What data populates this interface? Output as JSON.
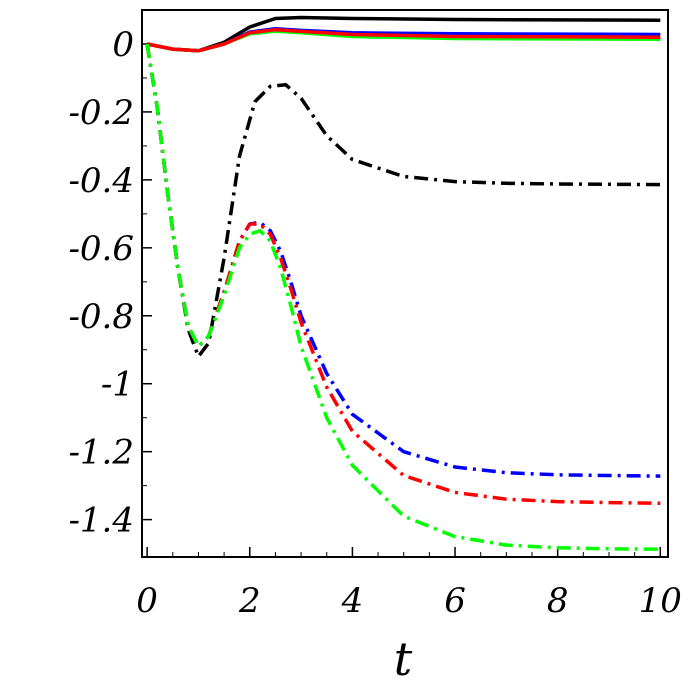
{
  "chart_data": {
    "type": "line",
    "xlabel": "t",
    "ylabel": "",
    "title": "",
    "xlim": [
      -0.1,
      10.15
    ],
    "ylim": [
      -1.51,
      0.1
    ],
    "grid": false,
    "xticks": [
      0,
      2,
      4,
      6,
      8,
      10
    ],
    "xtick_labels": [
      "0",
      "2",
      "4",
      "6",
      "8",
      "10"
    ],
    "yticks": [
      0,
      -0.2,
      -0.4,
      -0.6,
      -0.8,
      -1,
      -1.2,
      -1.4
    ],
    "ytick_labels": [
      "0",
      "-0.2",
      "-0.4",
      "-0.6",
      "-0.8",
      "-1",
      "-1.2",
      "-1.4"
    ],
    "series": [
      {
        "color": "#000000",
        "style": "solid",
        "x": [
          0,
          0.5,
          1.0,
          1.5,
          2.0,
          2.5,
          3.0,
          4.0,
          6.0,
          8.0,
          10.0
        ],
        "y": [
          0,
          -0.015,
          -0.02,
          0.005,
          0.05,
          0.075,
          0.078,
          0.075,
          0.072,
          0.071,
          0.07
        ]
      },
      {
        "color": "#0000ff",
        "style": "solid",
        "x": [
          0,
          0.5,
          1.0,
          1.5,
          2.0,
          2.5,
          3.0,
          4.0,
          6.0,
          8.0,
          10.0
        ],
        "y": [
          0,
          -0.015,
          -0.02,
          0.0,
          0.035,
          0.045,
          0.04,
          0.033,
          0.03,
          0.029,
          0.028
        ]
      },
      {
        "color": "#00ff00",
        "style": "solid",
        "x": [
          0,
          0.5,
          1.0,
          1.5,
          2.0,
          2.5,
          3.0,
          4.0,
          6.0,
          8.0,
          10.0
        ],
        "y": [
          0,
          -0.015,
          -0.02,
          0.0,
          0.03,
          0.038,
          0.033,
          0.022,
          0.016,
          0.015,
          0.014
        ]
      },
      {
        "color": "#ff0000",
        "style": "solid",
        "x": [
          0,
          0.5,
          1.0,
          1.5,
          2.0,
          2.5,
          3.0,
          4.0,
          6.0,
          8.0,
          10.0
        ],
        "y": [
          0,
          -0.015,
          -0.02,
          0.0,
          0.033,
          0.042,
          0.037,
          0.028,
          0.022,
          0.021,
          0.02
        ]
      },
      {
        "color": "#000000",
        "style": "dashdot",
        "x": [
          0,
          0.2,
          0.4,
          0.6,
          0.8,
          1.0,
          1.2,
          1.5,
          1.8,
          2.1,
          2.4,
          2.7,
          3.0,
          3.5,
          4.0,
          5.0,
          6.0,
          7.0,
          8.0,
          9.0,
          10.0
        ],
        "y": [
          0,
          -0.19,
          -0.44,
          -0.66,
          -0.84,
          -0.92,
          -0.88,
          -0.63,
          -0.33,
          -0.17,
          -0.125,
          -0.12,
          -0.16,
          -0.27,
          -0.34,
          -0.39,
          -0.405,
          -0.41,
          -0.412,
          -0.413,
          -0.414
        ]
      },
      {
        "color": "#0000ff",
        "style": "dashdot",
        "x": [
          0,
          0.2,
          0.4,
          0.6,
          0.8,
          1.0,
          1.2,
          1.5,
          1.8,
          2.0,
          2.2,
          2.4,
          2.6,
          2.8,
          3.0,
          3.5,
          4.0,
          5.0,
          6.0,
          7.0,
          8.0,
          9.0,
          10.0
        ],
        "y": [
          0,
          -0.19,
          -0.44,
          -0.66,
          -0.83,
          -0.89,
          -0.86,
          -0.73,
          -0.58,
          -0.53,
          -0.525,
          -0.55,
          -0.61,
          -0.7,
          -0.8,
          -0.97,
          -1.09,
          -1.2,
          -1.245,
          -1.262,
          -1.268,
          -1.27,
          -1.272
        ]
      },
      {
        "color": "#ff0000",
        "style": "dashdot",
        "x": [
          0,
          0.2,
          0.4,
          0.6,
          0.8,
          1.0,
          1.2,
          1.5,
          1.8,
          2.0,
          2.2,
          2.4,
          2.6,
          2.8,
          3.0,
          3.5,
          4.0,
          5.0,
          6.0,
          7.0,
          8.0,
          9.0,
          10.0
        ],
        "y": [
          0,
          -0.19,
          -0.44,
          -0.66,
          -0.83,
          -0.89,
          -0.86,
          -0.73,
          -0.58,
          -0.53,
          -0.53,
          -0.56,
          -0.63,
          -0.72,
          -0.82,
          -1.01,
          -1.14,
          -1.27,
          -1.32,
          -1.34,
          -1.347,
          -1.35,
          -1.352
        ]
      },
      {
        "color": "#00ff00",
        "style": "dashdot",
        "x": [
          0,
          0.2,
          0.4,
          0.6,
          0.8,
          1.0,
          1.2,
          1.5,
          1.8,
          2.0,
          2.2,
          2.4,
          2.6,
          2.8,
          3.0,
          3.5,
          4.0,
          5.0,
          6.0,
          7.0,
          8.0,
          9.0,
          10.0
        ],
        "y": [
          0,
          -0.19,
          -0.44,
          -0.66,
          -0.83,
          -0.89,
          -0.86,
          -0.74,
          -0.6,
          -0.56,
          -0.55,
          -0.58,
          -0.66,
          -0.77,
          -0.89,
          -1.1,
          -1.24,
          -1.39,
          -1.45,
          -1.475,
          -1.483,
          -1.486,
          -1.487
        ]
      }
    ]
  }
}
